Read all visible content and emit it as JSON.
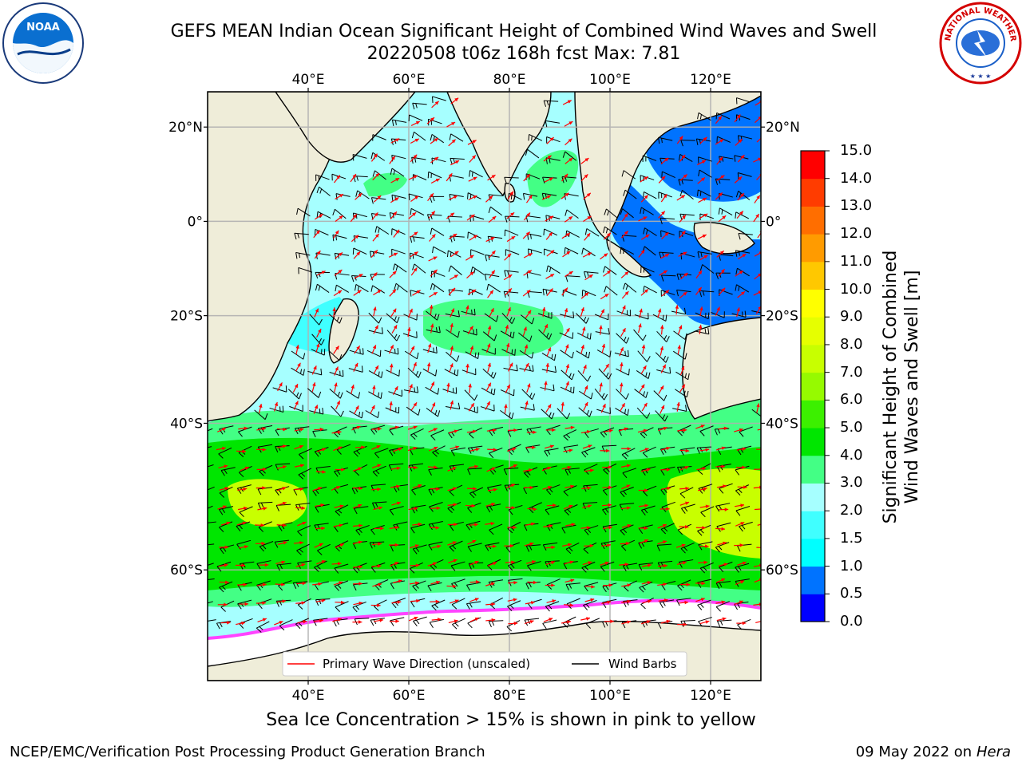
{
  "header": {
    "title_line1": "GEFS MEAN Indian Ocean Significant Height of Combined Wind Waves and Swell",
    "title_line2": "20220508 t06z 168h fcst   Max: 7.81"
  },
  "logos": {
    "noaa": {
      "name": "noaa-logo",
      "text": "NOAA"
    },
    "nws": {
      "name": "nws-logo",
      "text": "NATIONAL WEATHER SERVICE"
    }
  },
  "map": {
    "lon_labels": [
      "40°E",
      "60°E",
      "80°E",
      "100°E",
      "120°E"
    ],
    "lat_labels": [
      "20°N",
      "0°",
      "20°S",
      "40°S",
      "60°S"
    ],
    "lon_range": [
      20,
      130
    ],
    "lat_range": [
      -70,
      27
    ],
    "colors": {
      "land": "#efedd9",
      "ice": "#ffffff",
      "coast": "#000000",
      "grid": "#b0b0b0",
      "wave_arrow": "#ff0000",
      "wind_barb": "#000000"
    },
    "legend": {
      "wave_label": "Primary Wave Direction (unscaled)",
      "wind_label": "Wind Barbs"
    }
  },
  "colorbar": {
    "title_line1": "Significant Height of Combined",
    "title_line2": "Wind Waves and Swell [m]",
    "ticks": [
      "15.0",
      "14.0",
      "13.0",
      "12.0",
      "11.0",
      "10.0",
      "9.0",
      "8.0",
      "7.0",
      "6.0",
      "5.0",
      "4.0",
      "3.0",
      "2.0",
      "1.5",
      "1.0",
      "0.5",
      "0.0"
    ],
    "colors_bottom_to_top": [
      "#0000ff",
      "#0073ff",
      "#00ffff",
      "#40ffff",
      "#a6ffff",
      "#43ff85",
      "#00e600",
      "#3cf000",
      "#96fa00",
      "#c8ff00",
      "#e6ff00",
      "#ffff00",
      "#ffc800",
      "#ff9b00",
      "#ff6e00",
      "#ff3c00",
      "#ff0000"
    ]
  },
  "caption": {
    "ice_note": "Sea Ice Concentration > 15% is shown in pink to yellow"
  },
  "footer": {
    "left": "NCEP/EMC/Verification Post Processing Product Generation Branch",
    "right_date": "09 May 2022 on",
    "right_host": "Hera"
  }
}
